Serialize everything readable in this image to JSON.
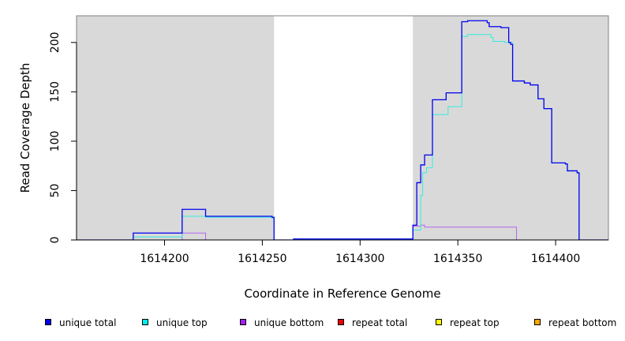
{
  "chart_data": {
    "type": "line",
    "xlabel": "Coordinate in Reference Genome",
    "ylabel": "Read Coverage Depth",
    "xlim": [
      1614155,
      1614427
    ],
    "ylim": [
      0,
      227
    ],
    "x_ticks": [
      1614200,
      1614250,
      1614300,
      1614350,
      1614400
    ],
    "y_ticks": [
      0,
      50,
      100,
      150,
      200
    ],
    "shaded_regions": [
      [
        1614155,
        1614256
      ],
      [
        1614327,
        1614427
      ]
    ],
    "shade_color": "#d9d9d9",
    "series": [
      {
        "name": "unique total",
        "color": "#0000ee",
        "points": [
          [
            1614155,
            0
          ],
          [
            1614184,
            0
          ],
          [
            1614184,
            7
          ],
          [
            1614209,
            7
          ],
          [
            1614209,
            31
          ],
          [
            1614221,
            31
          ],
          [
            1614221,
            24
          ],
          [
            1614255,
            24
          ],
          [
            1614255,
            23
          ],
          [
            1614256,
            23
          ],
          [
            1614256,
            0
          ],
          [
            1614266,
            0
          ],
          [
            1614266,
            1
          ],
          [
            1614327,
            1
          ],
          [
            1614327,
            15
          ],
          [
            1614329,
            15
          ],
          [
            1614329,
            58
          ],
          [
            1614331,
            58
          ],
          [
            1614331,
            76
          ],
          [
            1614333,
            76
          ],
          [
            1614333,
            86
          ],
          [
            1614337,
            86
          ],
          [
            1614337,
            142
          ],
          [
            1614344,
            142
          ],
          [
            1614344,
            149
          ],
          [
            1614352,
            149
          ],
          [
            1614352,
            221
          ],
          [
            1614355,
            221
          ],
          [
            1614355,
            222
          ],
          [
            1614365,
            222
          ],
          [
            1614365,
            220
          ],
          [
            1614366,
            220
          ],
          [
            1614366,
            216
          ],
          [
            1614372,
            216
          ],
          [
            1614372,
            215
          ],
          [
            1614376,
            215
          ],
          [
            1614376,
            200
          ],
          [
            1614377,
            200
          ],
          [
            1614377,
            198
          ],
          [
            1614378,
            198
          ],
          [
            1614378,
            161
          ],
          [
            1614384,
            161
          ],
          [
            1614384,
            159
          ],
          [
            1614387,
            159
          ],
          [
            1614387,
            157
          ],
          [
            1614391,
            157
          ],
          [
            1614391,
            143
          ],
          [
            1614394,
            143
          ],
          [
            1614394,
            133
          ],
          [
            1614398,
            133
          ],
          [
            1614398,
            78
          ],
          [
            1614405,
            78
          ],
          [
            1614405,
            77
          ],
          [
            1614406,
            77
          ],
          [
            1614406,
            70
          ],
          [
            1614411,
            70
          ],
          [
            1614411,
            68
          ],
          [
            1614412,
            68
          ],
          [
            1614412,
            0
          ],
          [
            1614427,
            0
          ]
        ]
      },
      {
        "name": "unique top",
        "color": "#33eedd",
        "points": [
          [
            1614155,
            0
          ],
          [
            1614184,
            0
          ],
          [
            1614184,
            3
          ],
          [
            1614209,
            3
          ],
          [
            1614209,
            24
          ],
          [
            1614221,
            24
          ],
          [
            1614221,
            23
          ],
          [
            1614255,
            23
          ],
          [
            1614255,
            22
          ],
          [
            1614256,
            22
          ],
          [
            1614256,
            0
          ],
          [
            1614266,
            0
          ],
          [
            1614266,
            1
          ],
          [
            1614327,
            1
          ],
          [
            1614327,
            10
          ],
          [
            1614331,
            10
          ],
          [
            1614331,
            45
          ],
          [
            1614332,
            45
          ],
          [
            1614332,
            68
          ],
          [
            1614334,
            68
          ],
          [
            1614334,
            73
          ],
          [
            1614337,
            73
          ],
          [
            1614337,
            127
          ],
          [
            1614345,
            127
          ],
          [
            1614345,
            135
          ],
          [
            1614352,
            135
          ],
          [
            1614352,
            206
          ],
          [
            1614355,
            206
          ],
          [
            1614355,
            208
          ],
          [
            1614367,
            208
          ],
          [
            1614367,
            205
          ],
          [
            1614368,
            205
          ],
          [
            1614368,
            201
          ],
          [
            1614374,
            201
          ],
          [
            1614374,
            200
          ],
          [
            1614378,
            200
          ],
          [
            1614378,
            161
          ],
          [
            1614384,
            161
          ],
          [
            1614384,
            159
          ],
          [
            1614387,
            159
          ],
          [
            1614387,
            157
          ],
          [
            1614391,
            157
          ],
          [
            1614391,
            143
          ],
          [
            1614394,
            143
          ],
          [
            1614394,
            133
          ],
          [
            1614398,
            133
          ],
          [
            1614398,
            78
          ],
          [
            1614405,
            78
          ],
          [
            1614405,
            77
          ],
          [
            1614406,
            77
          ],
          [
            1614406,
            70
          ],
          [
            1614411,
            70
          ],
          [
            1614411,
            68
          ],
          [
            1614412,
            68
          ],
          [
            1614412,
            0
          ],
          [
            1614427,
            0
          ]
        ]
      },
      {
        "name": "unique bottom",
        "color": "#b266ee",
        "points": [
          [
            1614155,
            0
          ],
          [
            1614209,
            0
          ],
          [
            1614209,
            7
          ],
          [
            1614221,
            7
          ],
          [
            1614221,
            0
          ],
          [
            1614327,
            0
          ],
          [
            1614327,
            14
          ],
          [
            1614331,
            14
          ],
          [
            1614331,
            15
          ],
          [
            1614333,
            15
          ],
          [
            1614333,
            13
          ],
          [
            1614380,
            13
          ],
          [
            1614380,
            0
          ],
          [
            1614427,
            0
          ]
        ]
      },
      {
        "name": "repeat total",
        "color": "#ee0000",
        "points": [
          [
            1614155,
            0
          ],
          [
            1614427,
            0
          ]
        ]
      },
      {
        "name": "repeat top",
        "color": "#eeee00",
        "points": [
          [
            1614209,
            0
          ],
          [
            1614221,
            0
          ],
          [
            1614327,
            0
          ],
          [
            1614380,
            0
          ]
        ]
      },
      {
        "name": "repeat bottom",
        "color": "#ffa500",
        "points": [
          [
            1614209,
            0
          ],
          [
            1614221,
            0
          ],
          [
            1614327,
            0
          ],
          [
            1614380,
            0
          ]
        ]
      }
    ],
    "legend": [
      {
        "label": "unique total",
        "color": "#0000ee"
      },
      {
        "label": "unique top",
        "color": "#00eeee"
      },
      {
        "label": "unique bottom",
        "color": "#a020f0"
      },
      {
        "label": "repeat total",
        "color": "#ee0000"
      },
      {
        "label": "repeat top",
        "color": "#ffff00"
      },
      {
        "label": "repeat bottom",
        "color": "#ffa500"
      }
    ],
    "legend_position": "bottom",
    "grid": false
  }
}
